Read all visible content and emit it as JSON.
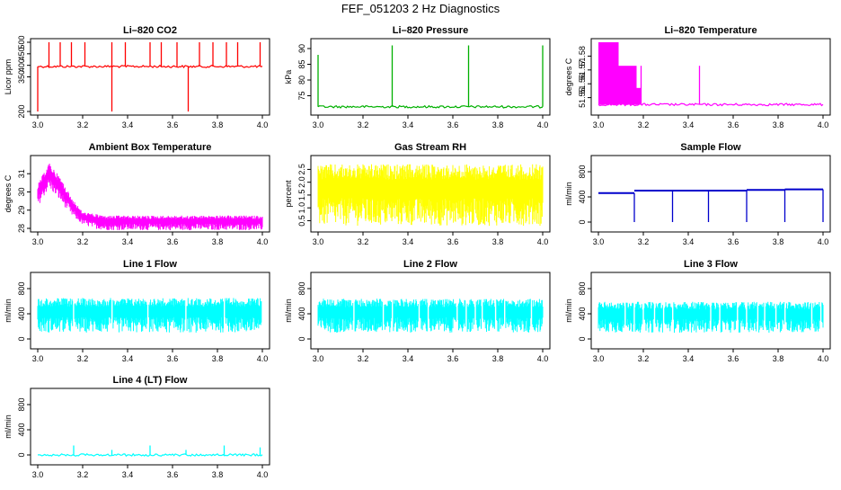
{
  "figure_title": "FEF_051203  2 Hz Diagnostics",
  "chart_data": [
    {
      "type": "line",
      "title": "Li–820 CO2",
      "xlabel": "",
      "ylabel": "Licor ppm",
      "color": "#ff0000",
      "xlim": [
        3.0,
        4.0
      ],
      "ylim": [
        200,
        500
      ],
      "xticks": [
        "3.0",
        "3.2",
        "3.4",
        "3.6",
        "3.8",
        "4.0"
      ],
      "yticks": [
        "200",
        "350",
        "400",
        "450",
        "500"
      ],
      "ytick_values": [
        200,
        350,
        400,
        450,
        500
      ],
      "baseline": 395,
      "spikes": [
        {
          "x": 3.0,
          "y": 200
        },
        {
          "x": 3.05,
          "y": 500
        },
        {
          "x": 3.1,
          "y": 500
        },
        {
          "x": 3.15,
          "y": 500
        },
        {
          "x": 3.21,
          "y": 500
        },
        {
          "x": 3.33,
          "y": 200
        },
        {
          "x": 3.33,
          "y": 500
        },
        {
          "x": 3.39,
          "y": 500
        },
        {
          "x": 3.5,
          "y": 500
        },
        {
          "x": 3.55,
          "y": 500
        },
        {
          "x": 3.62,
          "y": 500
        },
        {
          "x": 3.67,
          "y": 200
        },
        {
          "x": 3.72,
          "y": 500
        },
        {
          "x": 3.78,
          "y": 500
        },
        {
          "x": 3.84,
          "y": 500
        },
        {
          "x": 3.89,
          "y": 500
        },
        {
          "x": 3.99,
          "y": 500
        }
      ]
    },
    {
      "type": "line",
      "title": "Li–820 Pressure",
      "xlabel": "",
      "ylabel": "kPa",
      "color": "#00b000",
      "xlim": [
        3.0,
        4.0
      ],
      "ylim": [
        70,
        92
      ],
      "xticks": [
        "3.0",
        "3.2",
        "3.4",
        "3.6",
        "3.8",
        "4.0"
      ],
      "yticks": [
        "75",
        "80",
        "85",
        "90"
      ],
      "ytick_values": [
        75,
        80,
        85,
        90
      ],
      "baseline": 71.5,
      "spikes": [
        {
          "x": 3.0,
          "y": 88
        },
        {
          "x": 3.33,
          "y": 91
        },
        {
          "x": 3.67,
          "y": 91
        },
        {
          "x": 4.0,
          "y": 91
        }
      ]
    },
    {
      "type": "line",
      "title": "Li–820 Temperature",
      "xlabel": "",
      "ylabel": "degrees C",
      "color": "#ff00ff",
      "xlim": [
        3.0,
        4.0
      ],
      "ylim": [
        51.54,
        51.59
      ],
      "xticks": [
        "3.0",
        "3.2",
        "3.4",
        "3.6",
        "3.8",
        "4.0"
      ],
      "yticks": [
        "51.55",
        "51.56",
        "51.57",
        "51.58"
      ],
      "ytick_values": [
        51.55,
        51.56,
        51.57,
        51.58
      ],
      "blocks": [
        {
          "x0": 3.0,
          "x1": 3.09,
          "ylo": 51.545,
          "yhi": 51.59
        },
        {
          "x0": 3.09,
          "x1": 3.17,
          "ylo": 51.545,
          "yhi": 51.573
        },
        {
          "x0": 3.17,
          "x1": 3.19,
          "ylo": 51.545,
          "yhi": 51.557
        }
      ],
      "baseline": 51.545,
      "spikes": [
        {
          "x": 3.19,
          "y": 51.573
        },
        {
          "x": 3.45,
          "y": 51.573
        }
      ]
    },
    {
      "type": "line",
      "title": "Ambient Box Temperature",
      "xlabel": "",
      "ylabel": "degrees C",
      "color": "#ff00ff",
      "xlim": [
        3.0,
        4.0
      ],
      "ylim": [
        28,
        31.8
      ],
      "xticks": [
        "3.0",
        "3.2",
        "3.4",
        "3.6",
        "3.8",
        "4.0"
      ],
      "yticks": [
        "28",
        "29",
        "30",
        "31"
      ],
      "ytick_values": [
        28,
        29,
        30,
        31
      ],
      "envelope": [
        [
          3.0,
          29.2,
          30.4
        ],
        [
          3.05,
          30.2,
          31.6
        ],
        [
          3.1,
          29.5,
          30.8
        ],
        [
          3.15,
          28.7,
          29.7
        ],
        [
          3.2,
          28.2,
          28.9
        ],
        [
          3.25,
          28.0,
          28.8
        ],
        [
          3.3,
          27.9,
          28.7
        ],
        [
          4.0,
          27.9,
          28.7
        ]
      ]
    },
    {
      "type": "line",
      "title": "Gas Stream RH",
      "xlabel": "",
      "ylabel": "percent",
      "color": "#ffff00",
      "xlim": [
        3.0,
        4.0
      ],
      "ylim": [
        0.2,
        2.9
      ],
      "xticks": [
        "3.0",
        "3.2",
        "3.4",
        "3.6",
        "3.8",
        "4.0"
      ],
      "yticks": [
        "0.5",
        "1.0",
        "1.5",
        "2.0",
        "2.5"
      ],
      "ytick_values": [
        0.5,
        1.0,
        1.5,
        2.0,
        2.5
      ],
      "envelope": [
        [
          3.0,
          0.3,
          2.7
        ],
        [
          4.0,
          0.3,
          2.7
        ]
      ]
    },
    {
      "type": "line",
      "title": "Sample Flow",
      "xlabel": "",
      "ylabel": "ml/min",
      "color": "#0000cc",
      "xlim": [
        3.0,
        4.0
      ],
      "ylim": [
        -100,
        1000
      ],
      "xticks": [
        "3.0",
        "3.2",
        "3.4",
        "3.6",
        "3.8",
        "4.0"
      ],
      "yticks": [
        "0",
        "400",
        "800"
      ],
      "ytick_values": [
        0,
        400,
        800
      ],
      "segments": [
        [
          3.0,
          3.16,
          460
        ],
        [
          3.16,
          3.33,
          500
        ],
        [
          3.33,
          3.49,
          500
        ],
        [
          3.49,
          3.66,
          500
        ],
        [
          3.66,
          3.83,
          510
        ],
        [
          3.83,
          4.0,
          520
        ]
      ],
      "spikes": [
        {
          "x": 3.16,
          "y": 0
        },
        {
          "x": 3.33,
          "y": 0
        },
        {
          "x": 3.49,
          "y": 0
        },
        {
          "x": 3.66,
          "y": 0
        },
        {
          "x": 3.83,
          "y": 0
        },
        {
          "x": 4.0,
          "y": 0
        }
      ]
    },
    {
      "type": "line",
      "title": "Line 1 Flow",
      "xlabel": "",
      "ylabel": "ml/min",
      "color": "#00ffff",
      "xlim": [
        3.0,
        4.0
      ],
      "ylim": [
        -100,
        1000
      ],
      "xticks": [
        "3.0",
        "3.2",
        "3.4",
        "3.6",
        "3.8",
        "4.0"
      ],
      "yticks": [
        "0",
        "400",
        "800"
      ],
      "ytick_values": [
        0,
        400,
        800
      ],
      "envelope": [
        [
          3.0,
          100,
          650
        ],
        [
          4.0,
          100,
          650
        ]
      ],
      "gaps": [
        3.16,
        3.33,
        3.49,
        3.66,
        3.83,
        4.0
      ]
    },
    {
      "type": "line",
      "title": "Line 2 Flow",
      "xlabel": "",
      "ylabel": "ml/min",
      "color": "#00ffff",
      "xlim": [
        3.0,
        4.0
      ],
      "ylim": [
        -100,
        1000
      ],
      "xticks": [
        "3.0",
        "3.2",
        "3.4",
        "3.6",
        "3.8",
        "4.0"
      ],
      "yticks": [
        "0",
        "400",
        "800"
      ],
      "ytick_values": [
        0,
        400,
        800
      ],
      "envelope": [
        [
          3.0,
          100,
          640
        ],
        [
          4.0,
          100,
          640
        ]
      ],
      "gaps": [
        3.16,
        3.29,
        3.33,
        3.45,
        3.49,
        3.62,
        3.66,
        3.7,
        3.73,
        3.79,
        3.83,
        3.95
      ]
    },
    {
      "type": "line",
      "title": "Line 3 Flow",
      "xlabel": "",
      "ylabel": "ml/min",
      "color": "#00ffff",
      "xlim": [
        3.0,
        4.0
      ],
      "ylim": [
        -100,
        1000
      ],
      "xticks": [
        "3.0",
        "3.2",
        "3.4",
        "3.6",
        "3.8",
        "4.0"
      ],
      "yticks": [
        "0",
        "400",
        "800"
      ],
      "ytick_values": [
        0,
        400,
        800
      ],
      "envelope": [
        [
          3.0,
          100,
          590
        ],
        [
          4.0,
          100,
          590
        ]
      ],
      "gaps": [
        3.12,
        3.16,
        3.2,
        3.25,
        3.29,
        3.33,
        3.5,
        3.54,
        3.62,
        3.66,
        3.71,
        3.74,
        3.79,
        3.83,
        3.95,
        3.99
      ]
    },
    {
      "type": "line",
      "title": "Line 4 (LT) Flow",
      "xlabel": "",
      "ylabel": "ml/min",
      "color": "#00ffff",
      "xlim": [
        3.0,
        4.0
      ],
      "ylim": [
        -100,
        1000
      ],
      "xticks": [
        "3.0",
        "3.2",
        "3.4",
        "3.6",
        "3.8",
        "4.0"
      ],
      "yticks": [
        "0",
        "400",
        "800"
      ],
      "ytick_values": [
        0,
        400,
        800
      ],
      "baseline": 0,
      "spikes": [
        {
          "x": 3.16,
          "y": 150
        },
        {
          "x": 3.33,
          "y": 80
        },
        {
          "x": 3.5,
          "y": 150
        },
        {
          "x": 3.66,
          "y": 80
        },
        {
          "x": 3.83,
          "y": 150
        },
        {
          "x": 3.99,
          "y": 120
        }
      ]
    }
  ]
}
